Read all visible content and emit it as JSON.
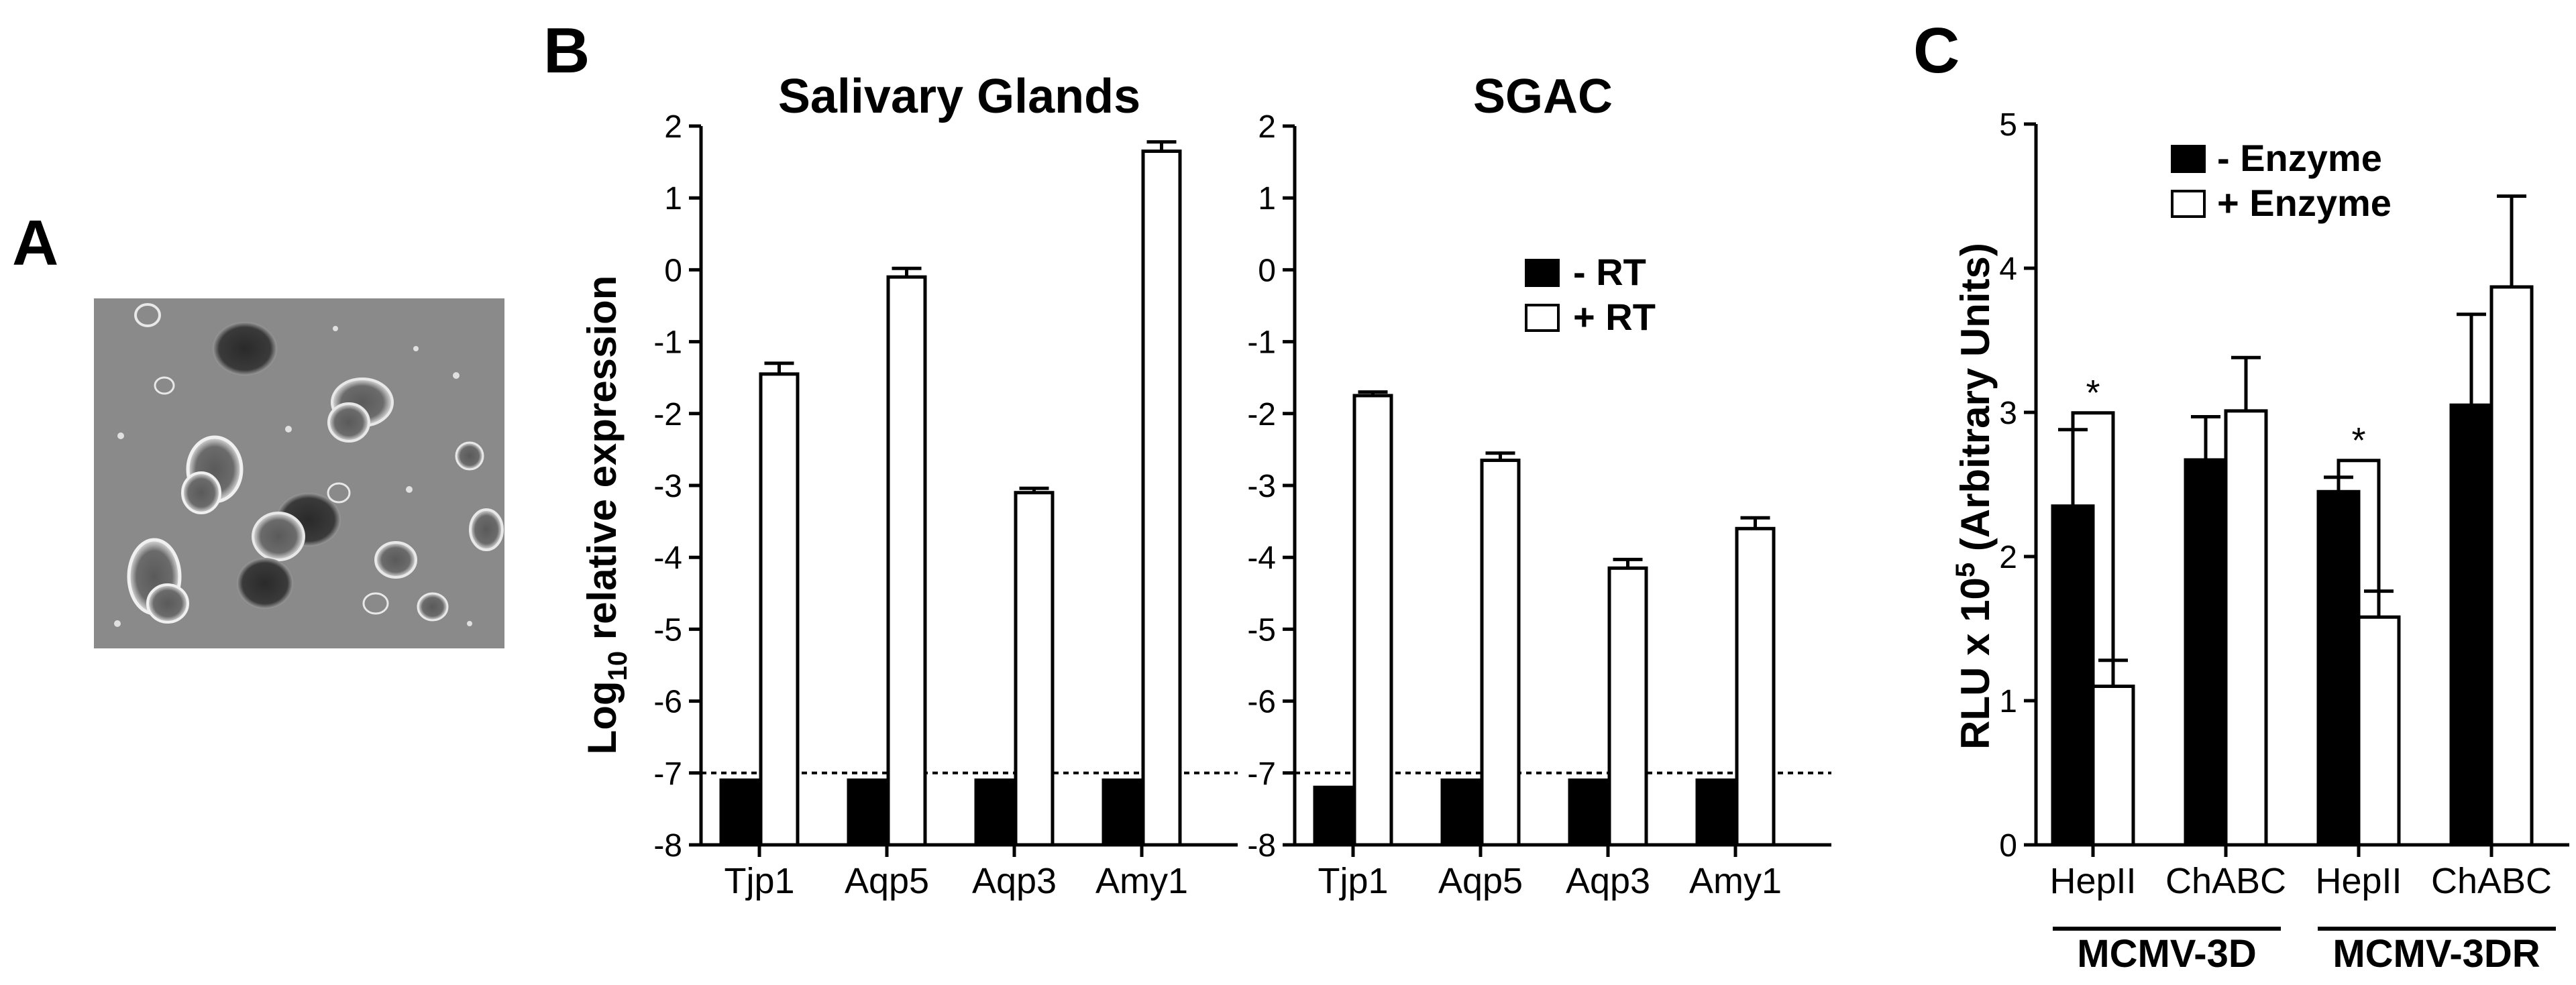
{
  "panels": {
    "a": "A",
    "b": "B",
    "c": "C"
  },
  "microscopy": {
    "description_icon": "phase-contrast-micrograph"
  },
  "panel_b": {
    "ylabel_main": "Log",
    "ylabel_sub": "10",
    "ylabel_rest": " relative expression",
    "legend": [
      "- RT",
      "+ RT"
    ]
  },
  "panel_c": {
    "ylabel_main": "RLU x 10",
    "ylabel_sup": "5",
    "ylabel_rest": " (Arbitrary Units)",
    "legend": [
      "- Enzyme",
      "+ Enzyme"
    ],
    "groups": [
      "MCMV-3D",
      "MCMV-3DR"
    ]
  },
  "chart_data": [
    {
      "id": "salivary",
      "type": "bar",
      "title": "Salivary Glands",
      "categories": [
        "Tjp1",
        "Aqp5",
        "Aqp3",
        "Amy1"
      ],
      "ylim": [
        -8,
        2
      ],
      "yticks": [
        2,
        1,
        0,
        -1,
        -2,
        -3,
        -4,
        -5,
        -6,
        -7,
        -8
      ],
      "ylabel": "Log10 relative expression",
      "threshold": -7,
      "series": [
        {
          "name": "- RT",
          "fill": "#000000",
          "values": [
            -7.1,
            -7.1,
            -7.1,
            -7.1
          ],
          "errors": [
            0,
            0,
            0,
            0
          ]
        },
        {
          "name": "+ RT",
          "fill": "#ffffff",
          "values": [
            -1.45,
            -0.1,
            -3.1,
            1.65
          ],
          "errors": [
            0.15,
            0.12,
            0.06,
            0.13
          ]
        }
      ]
    },
    {
      "id": "sgac",
      "type": "bar",
      "title": "SGAC",
      "categories": [
        "Tjp1",
        "Aqp5",
        "Aqp3",
        "Amy1"
      ],
      "ylim": [
        -8,
        2
      ],
      "yticks": [
        2,
        1,
        0,
        -1,
        -2,
        -3,
        -4,
        -5,
        -6,
        -7,
        -8
      ],
      "threshold": -7,
      "series": [
        {
          "name": "- RT",
          "fill": "#000000",
          "values": [
            -7.2,
            -7.1,
            -7.1,
            -7.1
          ],
          "errors": [
            0,
            0,
            0,
            0
          ]
        },
        {
          "name": "+ RT",
          "fill": "#ffffff",
          "values": [
            -1.75,
            -2.65,
            -4.15,
            -3.6
          ],
          "errors": [
            0.05,
            0.1,
            0.12,
            0.15
          ]
        }
      ]
    },
    {
      "id": "rlu",
      "type": "bar",
      "title": "",
      "categories": [
        "HepII",
        "ChABC",
        "HepII",
        "ChABC"
      ],
      "groups": [
        "MCMV-3D",
        "MCMV-3DR"
      ],
      "ylim": [
        0,
        5
      ],
      "yticks": [
        0,
        1,
        2,
        3,
        4,
        5
      ],
      "ylabel": "RLU x 10^5 (Arbitrary Units)",
      "significance": [
        {
          "category_index": 0,
          "label": "*"
        },
        {
          "category_index": 2,
          "label": "*"
        }
      ],
      "series": [
        {
          "name": "- Enzyme",
          "fill": "#000000",
          "values": [
            2.35,
            2.67,
            2.45,
            3.05
          ],
          "errors": [
            0.53,
            0.3,
            0.1,
            0.63
          ]
        },
        {
          "name": "+ Enzyme",
          "fill": "#ffffff",
          "values": [
            1.1,
            3.01,
            1.58,
            3.87
          ],
          "errors": [
            0.18,
            0.37,
            0.18,
            0.63
          ]
        }
      ]
    }
  ]
}
